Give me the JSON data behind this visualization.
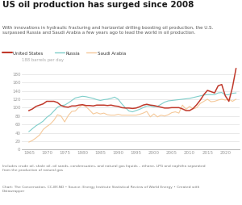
{
  "title": "US oil production has surged since 2008",
  "subtitle": "With innovations in hydraulic fracturing and horizontal drilling boosting oil production, the U.S.\nsurpassed Russia and Saudi Arabia a few years ago to lead the world in oil production.",
  "ylabel": "188 barrels per day",
  "footnote1": "Includes crude oil, shale oil, oil sands, condensuates, and natural gas liquids – ethane, LPG and naphtha separated\nfrom the production of natural gas",
  "footnote2": "Chart: The Conversation, CC-BY-ND • Source: Energy Institute Statistical Review of World Energy • Created with\nDatawrapper",
  "legend": [
    "United States",
    "Russia",
    "Saudi Arabia"
  ],
  "colors": {
    "us": "#c0392b",
    "russia": "#7ececa",
    "saudi": "#f5c99a"
  },
  "bg_color": "#ffffff",
  "years": [
    1965,
    1966,
    1967,
    1968,
    1969,
    1970,
    1971,
    1972,
    1973,
    1974,
    1975,
    1976,
    1977,
    1978,
    1979,
    1980,
    1981,
    1982,
    1983,
    1984,
    1985,
    1986,
    1987,
    1988,
    1989,
    1990,
    1991,
    1992,
    1993,
    1994,
    1995,
    1996,
    1997,
    1998,
    1999,
    2000,
    2001,
    2002,
    2003,
    2004,
    2005,
    2006,
    2007,
    2008,
    2009,
    2010,
    2011,
    2012,
    2013,
    2014,
    2015,
    2016,
    2017,
    2018,
    2019,
    2020,
    2021,
    2022,
    2023
  ],
  "us": [
    93,
    97,
    103,
    106,
    109,
    115,
    115,
    115,
    112,
    105,
    102,
    101,
    104,
    104,
    106,
    107,
    105,
    105,
    104,
    106,
    106,
    106,
    105,
    106,
    104,
    103,
    100,
    99,
    99,
    98,
    99,
    102,
    106,
    108,
    106,
    105,
    103,
    101,
    99,
    99,
    100,
    100,
    100,
    97,
    93,
    93,
    98,
    107,
    118,
    131,
    141,
    138,
    135,
    152,
    155,
    128,
    115,
    148,
    193
  ],
  "russia": [
    43,
    50,
    57,
    62,
    68,
    77,
    83,
    92,
    101,
    105,
    106,
    111,
    117,
    123,
    125,
    127,
    126,
    124,
    122,
    119,
    117,
    119,
    120,
    122,
    125,
    120,
    109,
    100,
    92,
    90,
    93,
    96,
    100,
    104,
    104,
    102,
    103,
    108,
    113,
    116,
    117,
    118,
    119,
    120,
    121,
    122,
    124,
    126,
    128,
    130,
    131,
    131,
    131,
    135,
    136,
    130,
    131,
    134,
    135
  ],
  "saudi": [
    18,
    22,
    28,
    35,
    48,
    55,
    61,
    70,
    83,
    80,
    66,
    81,
    91,
    92,
    101,
    106,
    102,
    94,
    85,
    88,
    85,
    87,
    83,
    82,
    82,
    84,
    82,
    82,
    82,
    82,
    82,
    84,
    87,
    91,
    78,
    85,
    78,
    82,
    80,
    83,
    88,
    90,
    87,
    106,
    96,
    103,
    97,
    100,
    110,
    115,
    120,
    114,
    115,
    118,
    120,
    118,
    120,
    115,
    120
  ],
  "ylim": [
    0,
    200
  ],
  "yticks": [
    0,
    20,
    40,
    60,
    80,
    100,
    120,
    140,
    160,
    180
  ],
  "xticks": [
    1965,
    1970,
    1975,
    1980,
    1985,
    1990,
    1995,
    2000,
    2005,
    2010,
    2015,
    2020
  ],
  "xlim": [
    1963,
    2024
  ]
}
